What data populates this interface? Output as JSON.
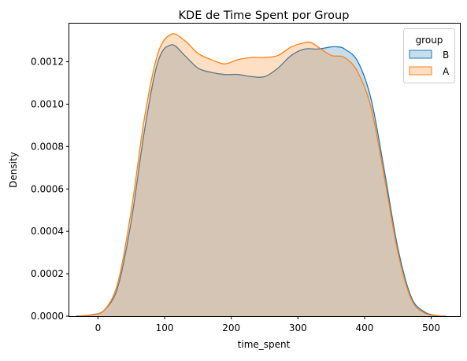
{
  "chart_data": {
    "type": "area",
    "title": "KDE de Time Spent por Group",
    "xlabel": "time_spent",
    "ylabel": "Density",
    "xlim": [
      -43,
      543
    ],
    "ylim": [
      0,
      0.00138
    ],
    "xticks": [
      0,
      100,
      200,
      300,
      400,
      500
    ],
    "yticks": [
      0.0,
      0.0002,
      0.0004,
      0.0006,
      0.0008,
      0.001,
      0.0012
    ],
    "ytick_labels": [
      "0.0000",
      "0.0002",
      "0.0004",
      "0.0006",
      "0.0008",
      "0.0010",
      "0.0012"
    ],
    "grid": false,
    "legend": {
      "title": "group",
      "placement": "top-right"
    },
    "series": [
      {
        "name": "B",
        "color": "#1f77b4",
        "x": [
          -33,
          -10,
          10,
          30,
          50,
          70,
          90,
          110,
          130,
          150,
          170,
          190,
          210,
          230,
          250,
          270,
          290,
          310,
          330,
          350,
          360,
          370,
          390,
          410,
          430,
          450,
          470,
          490,
          510,
          522
        ],
        "y": [
          0,
          6e-06,
          3e-05,
          0.00014,
          0.00045,
          0.00088,
          0.0012,
          0.00128,
          0.00123,
          0.00117,
          0.00115,
          0.00114,
          0.00114,
          0.00113,
          0.00113,
          0.00117,
          0.00123,
          0.00126,
          0.00126,
          0.00127,
          0.00127,
          0.00126,
          0.0012,
          0.00102,
          0.00068,
          0.00032,
          9e-05,
          2e-05,
          2e-06,
          0
        ]
      },
      {
        "name": "A",
        "color": "#ff7f0e",
        "x": [
          -30,
          -10,
          10,
          30,
          50,
          70,
          90,
          110,
          130,
          150,
          170,
          190,
          210,
          230,
          250,
          270,
          290,
          310,
          320,
          330,
          350,
          370,
          390,
          410,
          430,
          450,
          470,
          490,
          510,
          520
        ],
        "y": [
          0,
          7e-06,
          3e-05,
          0.00016,
          0.0005,
          0.00094,
          0.00124,
          0.00133,
          0.0013,
          0.00124,
          0.00121,
          0.00119,
          0.00121,
          0.00122,
          0.00122,
          0.00123,
          0.00127,
          0.00129,
          0.00129,
          0.00127,
          0.00123,
          0.00122,
          0.00115,
          0.00098,
          0.00065,
          0.0003,
          8e-05,
          1.5e-05,
          2e-06,
          0
        ]
      }
    ]
  }
}
